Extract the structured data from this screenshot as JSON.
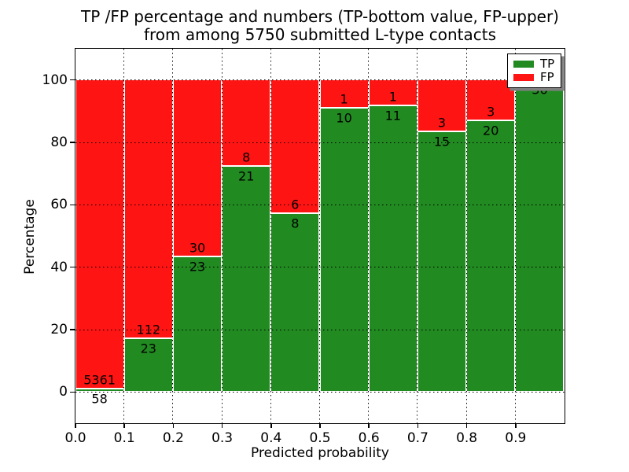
{
  "title_line1": "TP /FP percentage and numbers (TP-bottom value, FP-upper)",
  "title_line2": "from among 5750 submitted L-type contacts",
  "chart_data": {
    "type": "bar",
    "stacked": true,
    "title": "TP /FP percentage and numbers (TP-bottom value, FP-upper) from among 5750 submitted L-type contacts",
    "xlabel": "Predicted probability",
    "ylabel": "Percentage",
    "xlim": [
      0.0,
      1.0
    ],
    "ylim": [
      -10,
      110
    ],
    "bin_width": 0.1,
    "xtick_labels": [
      "0.0",
      "0.1",
      "0.2",
      "0.3",
      "0.4",
      "0.5",
      "0.6",
      "0.7",
      "0.8",
      "0.9"
    ],
    "yticks": [
      0,
      20,
      40,
      60,
      80,
      100
    ],
    "ytick_labels": [
      "0",
      "20",
      "40",
      "60",
      "80",
      "100"
    ],
    "grid": {
      "visible": true,
      "style": "dotted",
      "color": "#000000"
    },
    "colors": {
      "tp": "#218a21",
      "fp": "#ff1414",
      "bar_edge": "#ffffff"
    },
    "legend": {
      "position": "upper right",
      "shadow": true,
      "entries": [
        {
          "label": "TP",
          "color": "#218a21"
        },
        {
          "label": "FP",
          "color": "#ff1414"
        }
      ]
    },
    "bins": [
      {
        "x_range": [
          0.0,
          0.1
        ],
        "tp_count": 58,
        "fp_count": 5361,
        "tp_pct": 1.07
      },
      {
        "x_range": [
          0.1,
          0.2
        ],
        "tp_count": 23,
        "fp_count": 112,
        "tp_pct": 17.04
      },
      {
        "x_range": [
          0.2,
          0.3
        ],
        "tp_count": 23,
        "fp_count": 30,
        "tp_pct": 43.4
      },
      {
        "x_range": [
          0.3,
          0.4
        ],
        "tp_count": 21,
        "fp_count": 8,
        "tp_pct": 72.41
      },
      {
        "x_range": [
          0.4,
          0.5
        ],
        "tp_count": 8,
        "fp_count": 6,
        "tp_pct": 57.14
      },
      {
        "x_range": [
          0.5,
          0.6
        ],
        "tp_count": 10,
        "fp_count": 1,
        "tp_pct": 90.91
      },
      {
        "x_range": [
          0.6,
          0.7
        ],
        "tp_count": 11,
        "fp_count": 1,
        "tp_pct": 91.67
      },
      {
        "x_range": [
          0.7,
          0.8
        ],
        "tp_count": 15,
        "fp_count": 3,
        "tp_pct": 83.33
      },
      {
        "x_range": [
          0.8,
          0.9
        ],
        "tp_count": 20,
        "fp_count": 3,
        "tp_pct": 86.96
      },
      {
        "x_range": [
          0.9,
          1.0
        ],
        "tp_count": 36,
        "fp_count": 0,
        "tp_pct": 100.0
      }
    ]
  }
}
